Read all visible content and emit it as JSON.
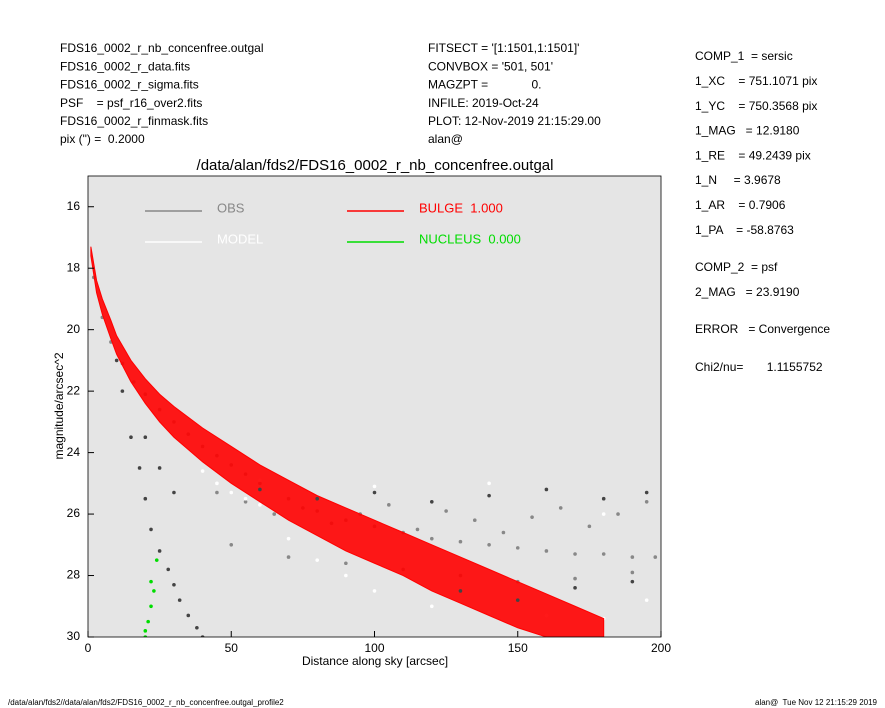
{
  "info_left": [
    "FDS16_0002_r_nb_concenfree.outgal",
    "FDS16_0002_r_data.fits",
    "FDS16_0002_r_sigma.fits",
    "PSF    = psf_r16_over2.fits",
    "FDS16_0002_r_finmask.fits",
    "pix (\") =  0.2000"
  ],
  "info_center": [
    "FITSECT = '[1:1501,1:1501]'",
    "CONVBOX = '501, 501'",
    "MAGZPT =             0.",
    "INFILE: 2019-Oct-24",
    "PLOT: 12-Nov-2019 21:15:29.00",
    "alan@"
  ],
  "info_right": [
    [
      "COMP_1  = sersic",
      "1_XC    = 751.1071 pix",
      "1_YC    = 750.3568 pix",
      "1_MAG   = 12.9180",
      "1_RE    = 49.2439 pix",
      "1_N     = 3.9678",
      "1_AR    = 0.7906",
      "1_PA    = -58.8763"
    ],
    [
      "COMP_2  = psf",
      "2_MAG   = 23.9190"
    ],
    [
      "ERROR   = Convergence"
    ],
    [
      "Chi2/nu=       1.1155752"
    ]
  ],
  "footer_left": "/data/alan/fds2//data/alan/fds2/FDS16_0002_r_nb_concenfree.outgal_profile2",
  "footer_right": "alan@  Tue Nov 12 21:15:29 2019",
  "chart_data": {
    "type": "scatter",
    "title": "/data/alan/fds2/FDS16_0002_r_nb_concenfree.outgal",
    "x_label": "Distance along sky [arcsec]",
    "y_label": "magnitude/arcsec^2",
    "xlim": [
      0,
      200
    ],
    "xticks": [
      0,
      50,
      100,
      150,
      200
    ],
    "ylim": [
      30,
      15
    ],
    "yticks": [
      16,
      18,
      20,
      22,
      24,
      26,
      28,
      30
    ],
    "background": "#e5e5e5",
    "series": [
      {
        "name": "OBS",
        "color": "#888888",
        "x": [
          2,
          5,
          8,
          12,
          16,
          20,
          25,
          30,
          35,
          40,
          45,
          50,
          55,
          60,
          70,
          80,
          90,
          100,
          110,
          120,
          130,
          140,
          150,
          160,
          170,
          180,
          190,
          198,
          45,
          55,
          65,
          75,
          85,
          95,
          105,
          115,
          125,
          135,
          145,
          155,
          165,
          175,
          185,
          195,
          50,
          70,
          90,
          110,
          130,
          150,
          170,
          190
        ],
        "y": [
          18.3,
          19.6,
          20.4,
          21.1,
          21.7,
          22.1,
          22.6,
          23.0,
          23.4,
          23.8,
          24.1,
          24.4,
          24.7,
          25.0,
          25.5,
          25.9,
          26.2,
          26.4,
          26.6,
          26.8,
          26.9,
          27.0,
          27.1,
          27.2,
          27.3,
          27.3,
          27.4,
          27.4,
          25.3,
          25.6,
          26.0,
          25.8,
          26.3,
          26.0,
          25.7,
          26.5,
          25.9,
          26.2,
          26.6,
          26.1,
          25.8,
          26.4,
          26.0,
          25.6,
          27.0,
          27.4,
          27.6,
          27.8,
          28.0,
          28.2,
          28.1,
          27.9
        ]
      },
      {
        "name": "MODEL",
        "color": "#ffffff",
        "x": [
          40,
          45,
          50,
          55,
          60,
          70,
          80,
          90,
          100,
          120,
          140,
          160,
          180,
          195,
          60,
          100,
          140,
          180
        ],
        "y": [
          24.6,
          25,
          25.3,
          25.5,
          25.7,
          26.8,
          27.5,
          28,
          28.5,
          29,
          29.2,
          29.3,
          29.4,
          28.8,
          24.9,
          25.1,
          25.0,
          26
        ]
      },
      {
        "name": "BULGE  1.000",
        "color": "#ff0000",
        "marker": "band",
        "x": [
          1,
          3,
          5,
          8,
          10,
          15,
          20,
          25,
          30,
          40,
          50,
          60,
          70,
          80,
          90,
          100,
          110,
          120,
          130,
          140,
          150,
          160,
          170,
          180,
          1,
          3,
          5,
          8,
          10,
          15,
          20,
          25,
          30,
          40,
          50,
          60,
          70,
          80,
          90,
          100,
          110,
          120,
          130,
          140,
          150,
          160,
          170,
          180
        ],
        "y": [
          17.3,
          18.4,
          19.0,
          19.7,
          20.2,
          21.0,
          21.6,
          22.1,
          22.5,
          23.2,
          23.8,
          24.4,
          24.9,
          25.4,
          25.8,
          26.2,
          26.6,
          27.0,
          27.4,
          27.8,
          28.2,
          28.6,
          29.0,
          29.4,
          17.6,
          18.8,
          19.5,
          20.3,
          20.8,
          21.7,
          22.4,
          23.0,
          23.5,
          24.3,
          25.0,
          25.6,
          26.2,
          26.7,
          27.2,
          27.6,
          28.0,
          28.5,
          28.9,
          29.3,
          29.7,
          30.0,
          30.0,
          30.0
        ]
      },
      {
        "name": "NUCLEUS  0.000",
        "color": "#00dd00",
        "x": [
          20,
          21,
          22,
          23,
          24,
          20,
          22
        ],
        "y": [
          30,
          29.5,
          29,
          28.5,
          27.5,
          29.8,
          28.2
        ]
      },
      {
        "color": "#444444",
        "x": [
          10,
          12,
          15,
          18,
          20,
          22,
          25,
          28,
          30,
          32,
          35,
          38,
          40,
          20,
          25,
          30,
          60,
          80,
          100,
          120,
          140,
          160,
          180,
          195,
          130,
          150,
          170,
          190
        ],
        "y": [
          21,
          22,
          23.5,
          24.5,
          25.5,
          26.5,
          27.2,
          27.8,
          28.3,
          28.8,
          29.3,
          29.7,
          30,
          23.5,
          24.5,
          25.3,
          25.2,
          25.5,
          25.3,
          25.6,
          25.4,
          25.2,
          25.5,
          25.3,
          28.5,
          28.8,
          28.4,
          28.2
        ]
      }
    ]
  }
}
